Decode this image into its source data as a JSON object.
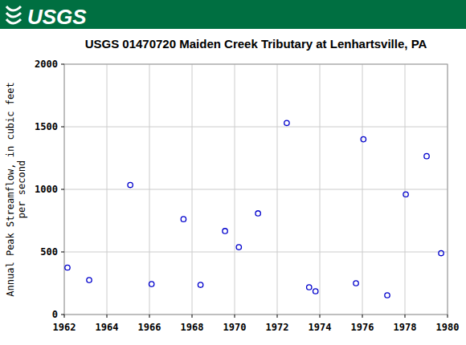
{
  "chart_data": {
    "type": "scatter",
    "logo": "USGS",
    "title": "USGS 01470720 Maiden Creek Tributary at Lenhartsville, PA",
    "ylabel": [
      "Annual Peak Streamflow, in cubic feet",
      "per second"
    ],
    "x": [
      1962.15,
      1963.17,
      1965.1,
      1966.1,
      1967.6,
      1968.4,
      1969.55,
      1970.2,
      1971.1,
      1972.45,
      1973.5,
      1973.8,
      1975.7,
      1976.05,
      1977.17,
      1978.04,
      1979.02,
      1979.7
    ],
    "values": [
      375,
      275,
      1035,
      243,
      762,
      237,
      667,
      538,
      808,
      1530,
      218,
      186,
      250,
      1400,
      154,
      960,
      1265,
      490
    ],
    "color": "#0000cc",
    "marker": "circle",
    "xlim": [
      1962,
      1980
    ],
    "xticks": [
      1962,
      1964,
      1966,
      1968,
      1970,
      1972,
      1974,
      1976,
      1978,
      1980
    ],
    "ylim": [
      0,
      2000
    ],
    "yticks": [
      0,
      500,
      1000,
      1500,
      2000
    ],
    "grid": true
  }
}
